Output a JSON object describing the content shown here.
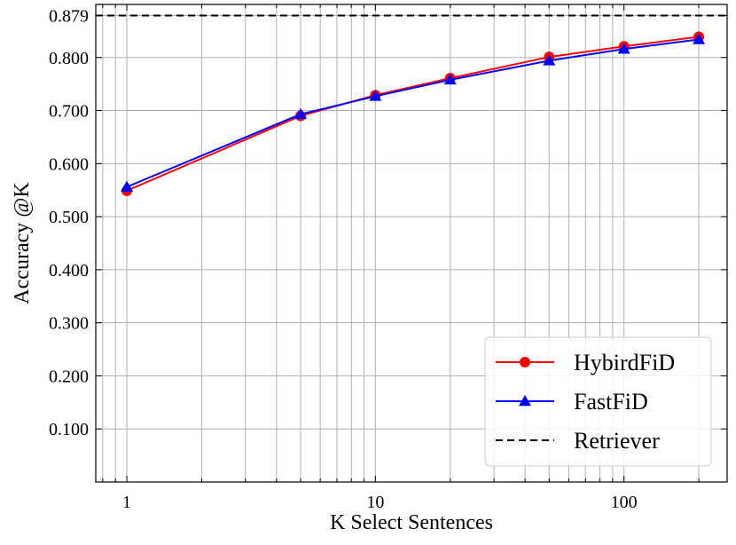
{
  "chart_data": {
    "type": "line",
    "title": "",
    "xlabel": "K Select Sentences",
    "ylabel": "Accuracy @K",
    "xscale": "log",
    "xlim": [
      0.75,
      260
    ],
    "ylim": [
      0.0,
      0.9
    ],
    "grid": true,
    "legend_position": "bottom-right",
    "xticks": [
      {
        "value": 1,
        "label": "1"
      },
      {
        "value": 10,
        "label": "10"
      },
      {
        "value": 100,
        "label": "100"
      }
    ],
    "yticks": [
      {
        "value": 0.1,
        "label": "0.100"
      },
      {
        "value": 0.2,
        "label": "0.200"
      },
      {
        "value": 0.3,
        "label": "0.300"
      },
      {
        "value": 0.4,
        "label": "0.400"
      },
      {
        "value": 0.5,
        "label": "0.500"
      },
      {
        "value": 0.6,
        "label": "0.600"
      },
      {
        "value": 0.7,
        "label": "0.700"
      },
      {
        "value": 0.8,
        "label": "0.800"
      },
      {
        "value": 0.879,
        "label": "0.879"
      }
    ],
    "x": [
      1,
      5,
      10,
      20,
      50,
      100,
      200
    ],
    "series": [
      {
        "name": "HybirdFiD",
        "color": "#ff0000",
        "marker": "circle",
        "values": [
          0.549,
          0.69,
          0.729,
          0.761,
          0.801,
          0.821,
          0.839
        ]
      },
      {
        "name": "FastFiD",
        "color": "#0000ff",
        "marker": "triangle",
        "values": [
          0.556,
          0.693,
          0.727,
          0.758,
          0.794,
          0.816,
          0.834
        ]
      }
    ],
    "reference_lines": [
      {
        "name": "Retriever",
        "value": 0.879,
        "style": "dashed",
        "color": "#000000"
      }
    ]
  }
}
